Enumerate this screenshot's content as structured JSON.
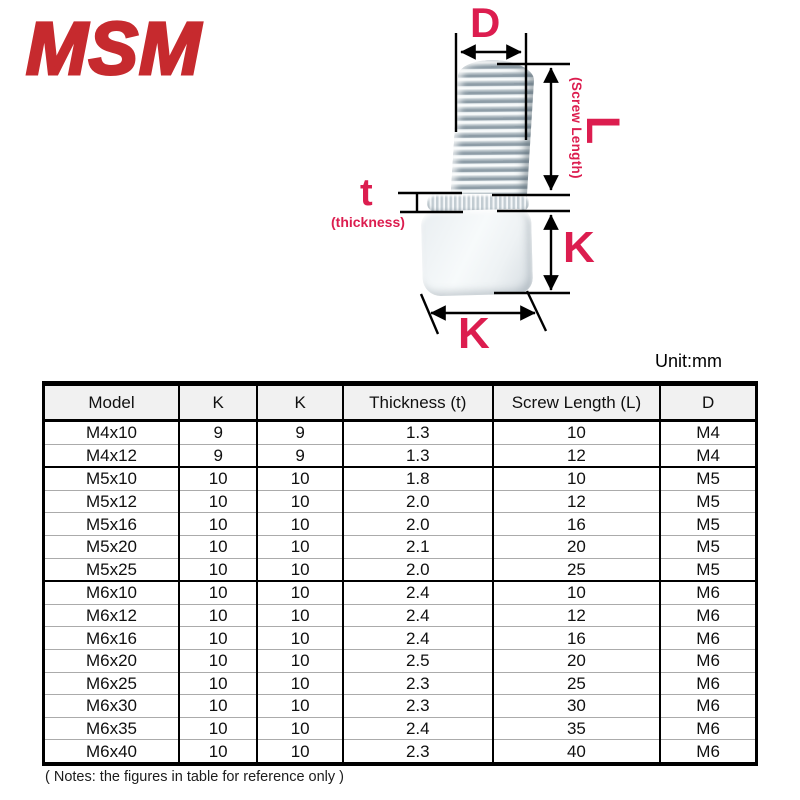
{
  "logo": {
    "text": "MSM",
    "color": "#c62a2e"
  },
  "diagram": {
    "accent_color": "#dc1d4f",
    "labels": {
      "d": "D",
      "l": "L",
      "screw_length": "(Screw Length)",
      "t": "t",
      "thickness": "(thickness)",
      "k_side": "K",
      "k_bottom": "K"
    }
  },
  "unit_label": "Unit:mm",
  "table": {
    "headers": [
      "Model",
      "K",
      "K",
      "Thickness (t)",
      "Screw Length (L)",
      "D"
    ],
    "rows": [
      [
        "M4x10",
        "9",
        "9",
        "1.3",
        "10",
        "M4"
      ],
      [
        "M4x12",
        "9",
        "9",
        "1.3",
        "12",
        "M4"
      ],
      [
        "M5x10",
        "10",
        "10",
        "1.8",
        "10",
        "M5"
      ],
      [
        "M5x12",
        "10",
        "10",
        "2.0",
        "12",
        "M5"
      ],
      [
        "M5x16",
        "10",
        "10",
        "2.0",
        "16",
        "M5"
      ],
      [
        "M5x20",
        "10",
        "10",
        "2.1",
        "20",
        "M5"
      ],
      [
        "M5x25",
        "10",
        "10",
        "2.0",
        "25",
        "M5"
      ],
      [
        "M6x10",
        "10",
        "10",
        "2.4",
        "10",
        "M6"
      ],
      [
        "M6x12",
        "10",
        "10",
        "2.4",
        "12",
        "M6"
      ],
      [
        "M6x16",
        "10",
        "10",
        "2.4",
        "16",
        "M6"
      ],
      [
        "M6x20",
        "10",
        "10",
        "2.5",
        "20",
        "M6"
      ],
      [
        "M6x25",
        "10",
        "10",
        "2.3",
        "25",
        "M6"
      ],
      [
        "M6x30",
        "10",
        "10",
        "2.3",
        "30",
        "M6"
      ],
      [
        "M6x35",
        "10",
        "10",
        "2.4",
        "35",
        "M6"
      ],
      [
        "M6x40",
        "10",
        "10",
        "2.3",
        "40",
        "M6"
      ]
    ],
    "group_breaks_after": [
      1,
      6
    ]
  },
  "note": "( Notes: the figures in table for reference only )"
}
